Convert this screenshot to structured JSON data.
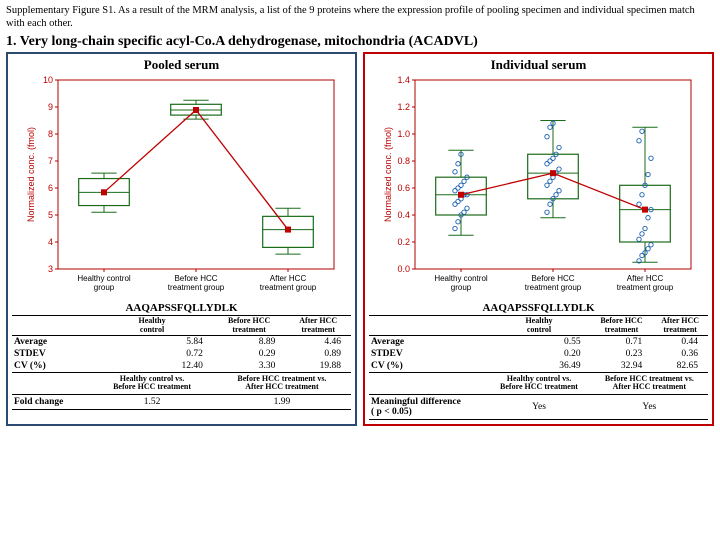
{
  "caption": "Supplementary Figure S1. As a result of the MRM analysis, a list of the 9 proteins where the expression profile of pooling specimen and individual specimen match with each other.",
  "section_title": "1. Very long-chain specific acyl-Co.A dehydrogenase, mitochondria (ACADVL)",
  "categories": [
    "Healthy control\ngroup",
    "Before HCC\ntreatment group",
    "After HCC\ntreatment group"
  ],
  "ylabel": "Normalized conc. (fmol)",
  "panels": {
    "pooled": {
      "title": "Pooled serum",
      "border_color": "#2b4a6f",
      "ylim": [
        3,
        10
      ],
      "ytick_step": 1,
      "boxes": [
        {
          "min": 5.1,
          "q1": 5.35,
          "med": 5.84,
          "q3": 6.35,
          "max": 6.55
        },
        {
          "min": 8.55,
          "q1": 8.7,
          "med": 8.89,
          "q3": 9.1,
          "max": 9.25
        },
        {
          "min": 3.55,
          "q1": 3.8,
          "med": 4.46,
          "q3": 4.95,
          "max": 5.25
        }
      ],
      "peptide": "AAQAPSSFQLLYDLK",
      "stats_cols": [
        "Healthy control",
        "Before HCC treatment",
        "After HCC treatment"
      ],
      "stats": {
        "Average": [
          "5.84",
          "8.89",
          "4.46"
        ],
        "STDEV": [
          "0.72",
          "0.29",
          "0.89"
        ],
        "CV (%)": [
          "12.40",
          "3.30",
          "19.88"
        ]
      },
      "comp_cols": [
        "Healthy control vs.\nBefore HCC treatment",
        "Before HCC treatment vs.\nAfter HCC treatment"
      ],
      "comp_rowhead": "Fold change",
      "comp_vals": [
        "1.52",
        "1.99"
      ]
    },
    "individual": {
      "title": "Individual serum",
      "border_color": "#c00000",
      "ylim": [
        0,
        1.4
      ],
      "ytick_step": 0.2,
      "boxes": [
        {
          "min": 0.25,
          "q1": 0.4,
          "med": 0.55,
          "q3": 0.68,
          "max": 0.88
        },
        {
          "min": 0.38,
          "q1": 0.52,
          "med": 0.71,
          "q3": 0.85,
          "max": 1.1
        },
        {
          "min": 0.05,
          "q1": 0.2,
          "med": 0.44,
          "q3": 0.62,
          "max": 1.05
        }
      ],
      "scatter": [
        [
          0.3,
          0.35,
          0.4,
          0.42,
          0.45,
          0.48,
          0.5,
          0.52,
          0.55,
          0.55,
          0.58,
          0.6,
          0.62,
          0.65,
          0.68,
          0.72,
          0.78,
          0.85
        ],
        [
          0.42,
          0.48,
          0.52,
          0.55,
          0.58,
          0.62,
          0.65,
          0.68,
          0.71,
          0.74,
          0.78,
          0.8,
          0.82,
          0.85,
          0.9,
          0.98,
          1.05,
          1.08
        ],
        [
          0.06,
          0.1,
          0.12,
          0.15,
          0.18,
          0.22,
          0.26,
          0.3,
          0.38,
          0.44,
          0.48,
          0.55,
          0.62,
          0.7,
          0.82,
          0.95,
          1.02
        ]
      ],
      "peptide": "AAQAPSSFQLLYDLK",
      "stats_cols": [
        "Healthy control",
        "Before HCC treatment",
        "After HCC treatment"
      ],
      "stats": {
        "Average": [
          "0.55",
          "0.71",
          "0.44"
        ],
        "STDEV": [
          "0.20",
          "0.23",
          "0.36"
        ],
        "CV (%)": [
          "36.49",
          "32.94",
          "82.65"
        ]
      },
      "comp_cols": [
        "Healthy control vs.\nBefore HCC treatment",
        "Before HCC treatment vs.\nAfter HCC treatment"
      ],
      "comp_rowhead": "Meaningful difference\n( p < 0.05)",
      "comp_vals": [
        "Yes",
        "Yes"
      ]
    }
  },
  "colors": {
    "axis": "#b00000",
    "box_stroke": "#1a6b1a",
    "box_fill": "#ffffff",
    "median_marker": "#c00000",
    "line": "#c00000",
    "scatter": "#1a5fb0",
    "grid": "#888"
  }
}
